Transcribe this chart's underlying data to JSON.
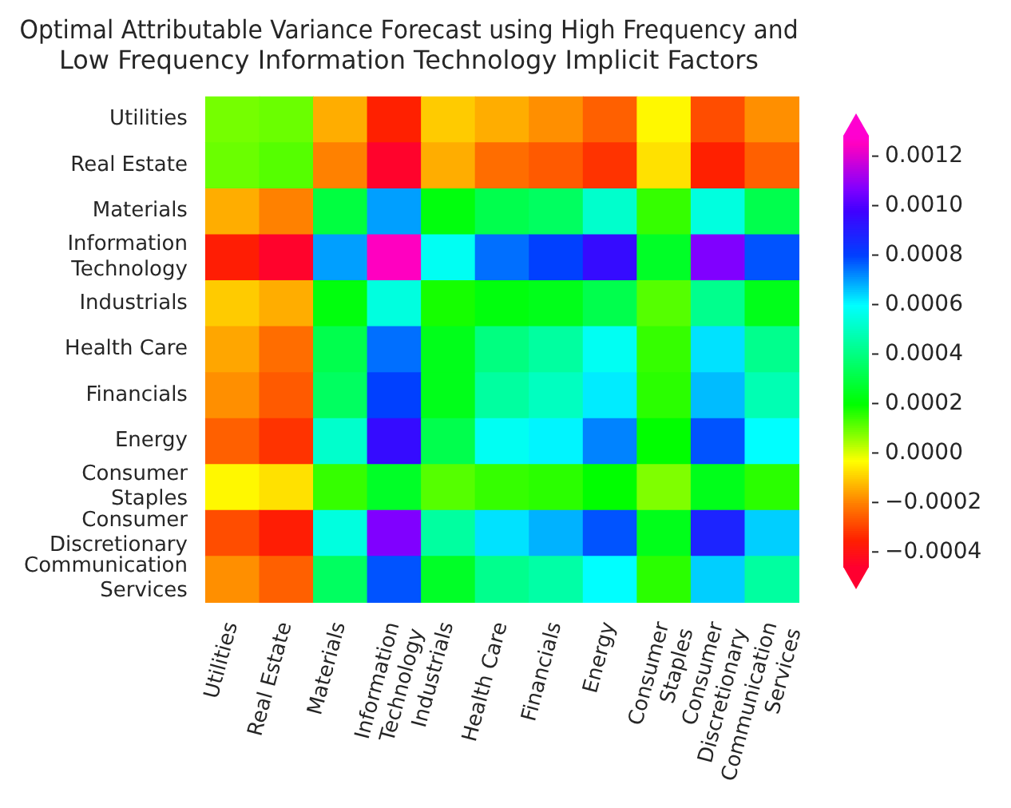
{
  "chart_data": {
    "type": "heatmap",
    "title": "Optimal Attributable Variance Forecast using High Frequency and Low Frequency Information Technology Implicit Factors",
    "categories": [
      "Utilities",
      "Real Estate",
      "Materials",
      "Information Technology",
      "Industrials",
      "Health Care",
      "Financials",
      "Energy",
      "Consumer Staples",
      "Consumer Discretionary",
      "Communication Services"
    ],
    "y_categories": [
      "Utilities",
      "Real Estate",
      "Materials",
      "Information Technology",
      "Industrials",
      "Health Care",
      "Financials",
      "Energy",
      "Consumer Staples",
      "Consumer Discretionary",
      "Communication Services"
    ],
    "cells": [
      [
        9e-05,
        0.0001,
        -0.00014,
        -0.00035,
        -0.0001,
        -0.00014,
        -0.00018,
        -0.00025,
        -4e-05,
        -0.00028,
        -0.00018
      ],
      [
        0.0001,
        0.00012,
        -0.0002,
        -0.00045,
        -0.00014,
        -0.00023,
        -0.00026,
        -0.00032,
        -7e-05,
        -0.00035,
        -0.00025
      ],
      [
        -0.00014,
        -0.0002,
        0.0003,
        0.0007,
        0.00022,
        0.00032,
        0.00035,
        0.00052,
        0.00015,
        0.00055,
        0.00032
      ],
      [
        -0.00036,
        -0.00045,
        0.0007,
        0.00125,
        0.00058,
        0.00075,
        0.0008,
        0.00095,
        0.00026,
        0.00107,
        0.00078
      ],
      [
        -0.0001,
        -0.00014,
        0.00022,
        0.00055,
        0.00018,
        0.00022,
        0.00024,
        0.00032,
        0.00012,
        0.00042,
        0.00024
      ],
      [
        -0.00015,
        -0.00023,
        0.00032,
        0.00075,
        0.00024,
        0.0004,
        0.00045,
        0.00058,
        0.00015,
        0.00063,
        0.00042
      ],
      [
        -0.00018,
        -0.00026,
        0.00035,
        0.0008,
        0.00024,
        0.00045,
        0.0005,
        0.00062,
        0.00016,
        0.00067,
        0.00048
      ],
      [
        -0.00025,
        -0.00032,
        0.00052,
        0.00095,
        0.00032,
        0.00058,
        0.00061,
        0.00073,
        0.0002,
        0.00078,
        0.0006
      ],
      [
        -4e-05,
        -7e-05,
        0.00015,
        0.00026,
        0.00012,
        0.00015,
        0.00016,
        0.0002,
        8e-05,
        0.00024,
        0.00016
      ],
      [
        -0.00028,
        -0.00036,
        0.00055,
        0.00107,
        0.00045,
        0.00063,
        0.00068,
        0.00078,
        0.00024,
        0.00088,
        0.00065
      ],
      [
        -0.00018,
        -0.00025,
        0.00035,
        0.00078,
        0.00026,
        0.00042,
        0.00046,
        0.0006,
        0.00016,
        0.00065,
        0.00045
      ]
    ],
    "clim": [
      -0.00046,
      0.00128
    ],
    "cticks": [
      {
        "value": -0.0004,
        "label": "−0.0004"
      },
      {
        "value": -0.0002,
        "label": "−0.0002"
      },
      {
        "value": 0,
        "label": "0.0000"
      },
      {
        "value": 0.0002,
        "label": "0.0002"
      },
      {
        "value": 0.0004,
        "label": "0.0004"
      },
      {
        "value": 0.0006,
        "label": "0.0006"
      },
      {
        "value": 0.0008,
        "label": "0.0008"
      },
      {
        "value": 0.001,
        "label": "0.0010"
      },
      {
        "value": 0.0012,
        "label": "0.0012"
      }
    ]
  }
}
